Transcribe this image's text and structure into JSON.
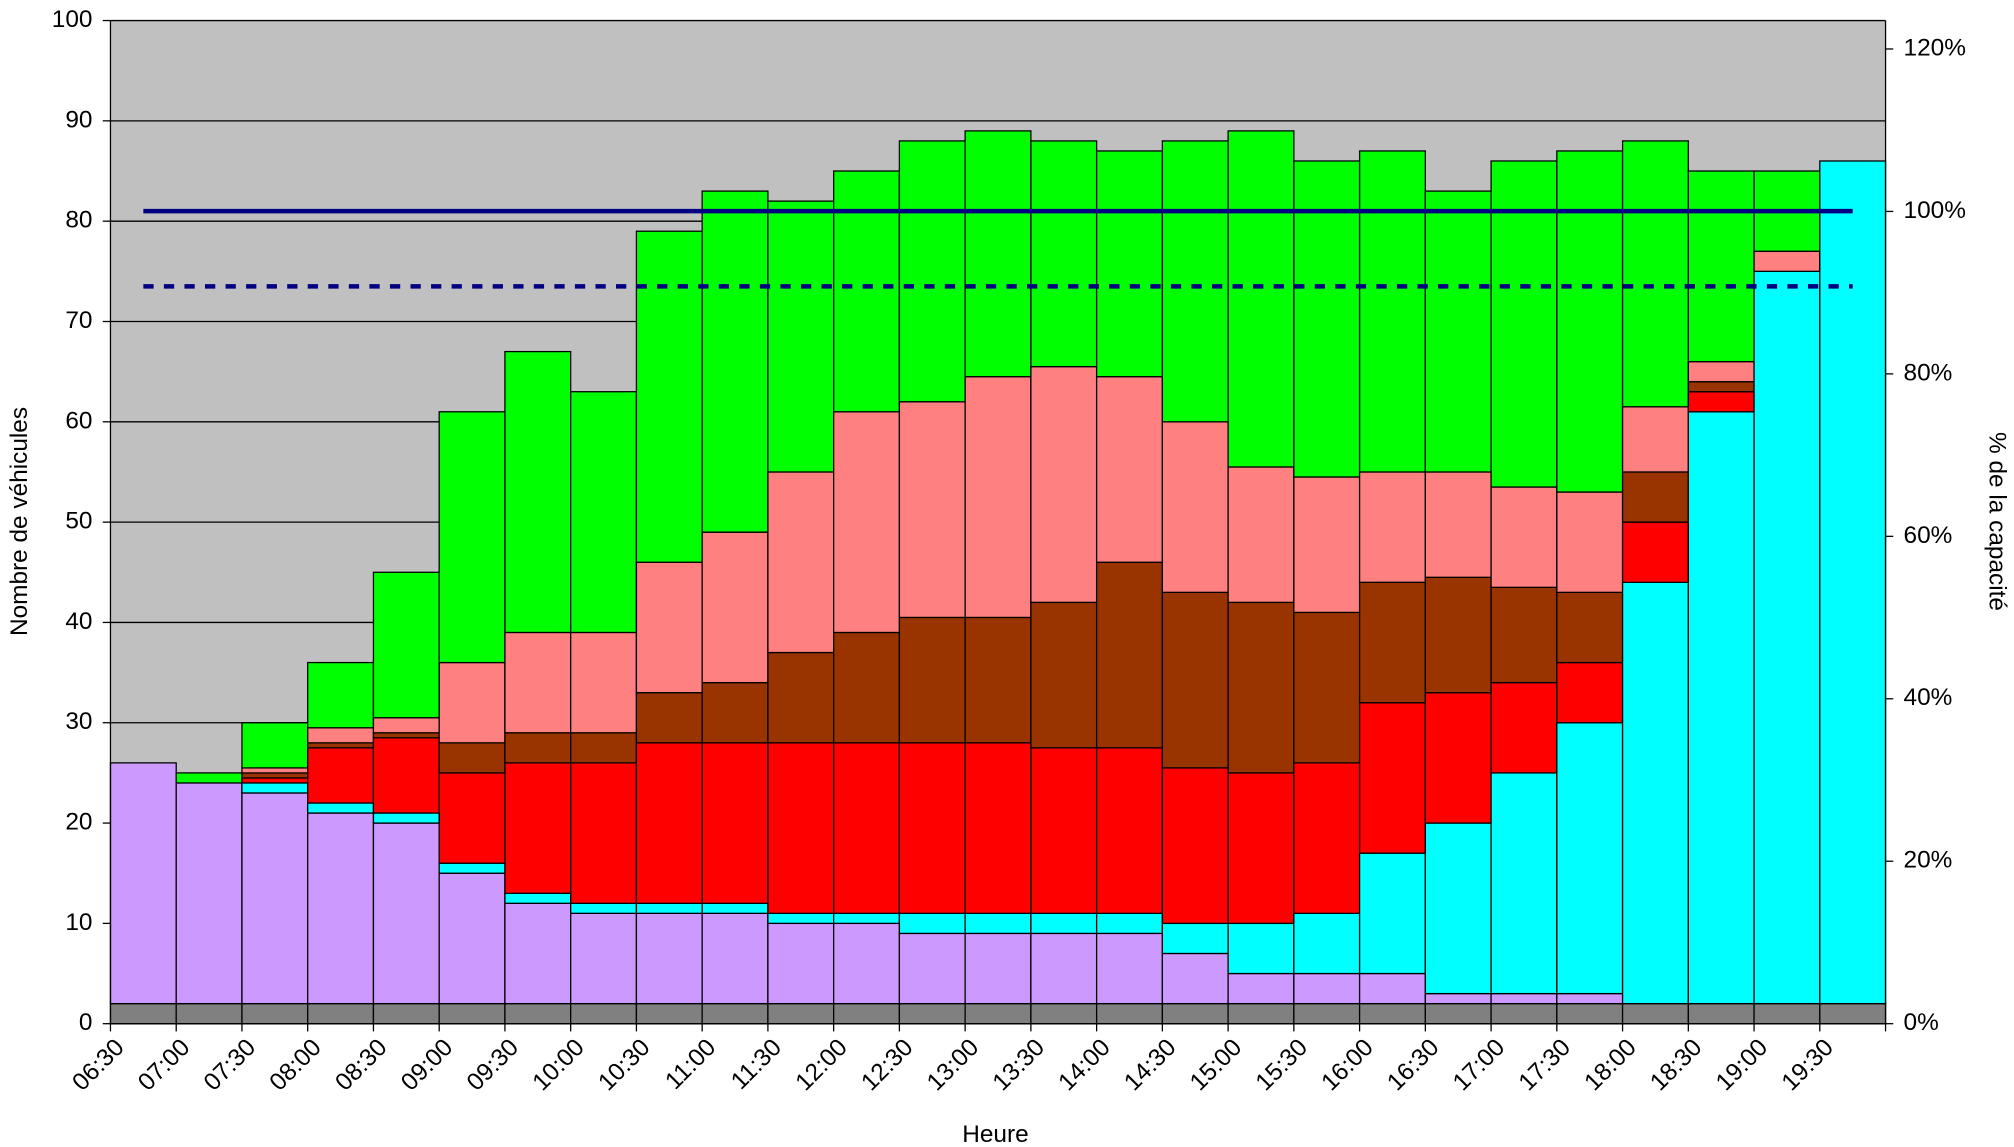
{
  "chart_data": {
    "type": "bar",
    "stacked": true,
    "xlabel": "Heure",
    "ylabel": "Nombre de véhicules",
    "y2label": "% de la capacité",
    "background": "#c0c0c0",
    "grid": true,
    "categories": [
      "06:30",
      "07:00",
      "07:30",
      "08:00",
      "08:30",
      "09:00",
      "09:30",
      "10:00",
      "10:30",
      "11:00",
      "11:30",
      "12:00",
      "12:30",
      "13:00",
      "13:30",
      "14:00",
      "14:30",
      "15:00",
      "15:30",
      "16:00",
      "16:30",
      "17:00",
      "17:30",
      "18:00",
      "18:30",
      "19:00",
      "19:30"
    ],
    "series": [
      {
        "color": "#808080",
        "values": [
          2,
          2,
          2,
          2,
          2,
          2,
          2,
          2,
          2,
          2,
          2,
          2,
          2,
          2,
          2,
          2,
          2,
          2,
          2,
          2,
          2,
          2,
          2,
          2,
          2,
          2,
          2
        ]
      },
      {
        "color": "#cc99ff",
        "values": [
          24,
          22,
          21,
          19,
          18,
          13,
          10,
          9,
          9,
          9,
          8,
          8,
          7,
          7,
          7,
          7,
          5,
          3,
          3,
          3,
          1,
          1,
          1,
          0,
          0,
          0,
          0
        ]
      },
      {
        "color": "#00ffff",
        "values": [
          0,
          0,
          1,
          1,
          1,
          1,
          1,
          1,
          1,
          1,
          1,
          1,
          2,
          2,
          2,
          2,
          3,
          5,
          6,
          12,
          17,
          22,
          27,
          42,
          59,
          73,
          84
        ]
      },
      {
        "color": "#ff0000",
        "values": [
          0,
          0,
          0.5,
          5.5,
          7.5,
          9,
          13,
          14,
          16,
          16,
          17,
          17,
          17,
          17,
          16.5,
          16.5,
          15.5,
          15,
          15,
          15,
          13,
          9,
          6,
          6,
          2,
          0,
          0
        ]
      },
      {
        "color": "#993300",
        "values": [
          0,
          0,
          0.5,
          0.5,
          0.5,
          3,
          3,
          3,
          5,
          6,
          9,
          11,
          12.5,
          12.5,
          14.5,
          18.5,
          17.5,
          17,
          15,
          12,
          11.5,
          9.5,
          7,
          5,
          1,
          0,
          0
        ]
      },
      {
        "color": "#ff8080",
        "values": [
          0,
          0,
          0.5,
          1.5,
          1.5,
          8,
          10,
          10,
          13,
          15,
          18,
          22,
          21.5,
          24,
          23.5,
          18.5,
          17,
          13.5,
          13.5,
          11,
          10.5,
          10,
          10,
          6.5,
          2,
          2,
          0
        ]
      },
      {
        "color": "#00ff00",
        "values": [
          0,
          1,
          4.5,
          6.5,
          14.5,
          25,
          28,
          24,
          33,
          34,
          27,
          24,
          26,
          24.5,
          22.5,
          22.5,
          28,
          33.5,
          31.5,
          32,
          28,
          32.5,
          34,
          26.5,
          19,
          8,
          0
        ]
      }
    ],
    "lines": [
      {
        "color": "#000080",
        "dashed": false,
        "values": [
          81,
          81,
          81,
          81,
          81,
          81,
          81,
          81,
          81,
          81,
          81,
          81,
          81,
          81,
          81,
          81,
          81,
          81,
          81,
          81,
          81,
          81,
          81,
          81,
          81,
          81,
          81
        ]
      },
      {
        "color": "#000080",
        "dashed": true,
        "values": [
          73.5,
          73.5,
          73.5,
          73.5,
          73.5,
          73.5,
          73.5,
          73.5,
          73.5,
          73.5,
          73.5,
          73.5,
          73.5,
          73.5,
          73.5,
          73.5,
          73.5,
          73.5,
          73.5,
          73.5,
          73.5,
          73.5,
          73.5,
          73.5,
          73.5,
          73.5,
          73.5
        ]
      }
    ],
    "ylim": [
      0,
      100
    ],
    "yticks": [
      0,
      10,
      20,
      30,
      40,
      50,
      60,
      70,
      80,
      90,
      100
    ],
    "y2lim": [
      0,
      123.5
    ],
    "y2ticks": [
      {
        "value": 0,
        "label": "0%"
      },
      {
        "value": 20,
        "label": "20%"
      },
      {
        "value": 40,
        "label": "40%"
      },
      {
        "value": 60,
        "label": "60%"
      },
      {
        "value": 80,
        "label": "80%"
      },
      {
        "value": 100,
        "label": "100%"
      },
      {
        "value": 120,
        "label": "120%"
      }
    ]
  }
}
